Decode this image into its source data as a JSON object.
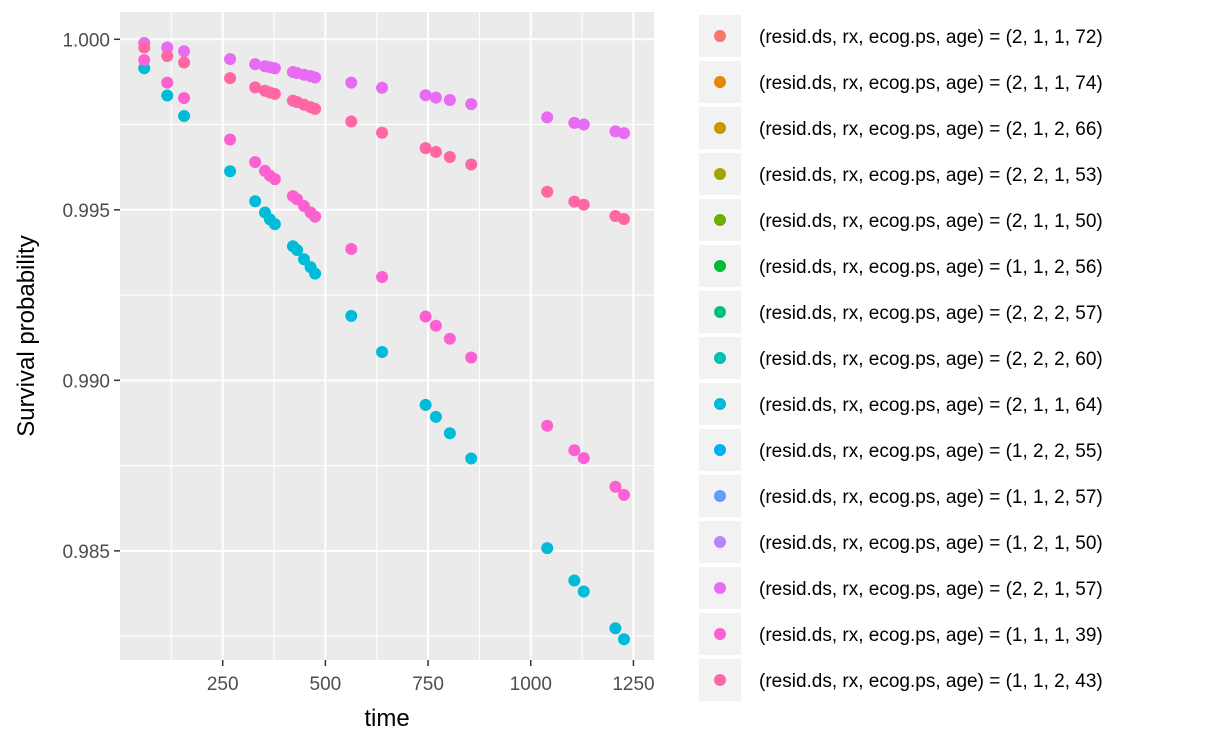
{
  "chart_data": {
    "type": "scatter",
    "title": "",
    "xlabel": "time",
    "ylabel": "Survival probability",
    "xlim": [
      0,
      1300
    ],
    "ylim": [
      0.9818,
      1.0008
    ],
    "x_ticks": [
      250,
      500,
      750,
      1000,
      1250
    ],
    "y_ticks": [
      0.985,
      0.99,
      0.995,
      1.0
    ],
    "x_tick_labels": [
      "250",
      "500",
      "750",
      "1000",
      "1250"
    ],
    "y_tick_labels": [
      "0.985",
      "0.990",
      "0.995",
      "1.000"
    ],
    "grid": true,
    "legend_position": "right",
    "times": [
      59,
      115,
      156,
      268,
      329,
      353,
      365,
      377,
      421,
      431,
      448,
      464,
      475,
      563,
      638,
      744,
      769,
      803,
      855,
      1040,
      1106,
      1129,
      1206,
      1227
    ],
    "series": [
      {
        "name": "(resid.ds, rx, ecog.ps, age) = (2, 1, 1, 72)",
        "color": "#F8766D",
        "values": []
      },
      {
        "name": "(resid.ds, rx, ecog.ps, age) = (2, 1, 1, 74)",
        "color": "#E58700",
        "values": []
      },
      {
        "name": "(resid.ds, rx, ecog.ps, age) = (2, 1, 2, 66)",
        "color": "#C99800",
        "values": []
      },
      {
        "name": "(resid.ds, rx, ecog.ps, age) = (2, 2, 1, 53)",
        "color": "#A3A500",
        "values": []
      },
      {
        "name": "(resid.ds, rx, ecog.ps, age) = (2, 1, 1, 50)",
        "color": "#6BB100",
        "values": []
      },
      {
        "name": "(resid.ds, rx, ecog.ps, age) = (1, 1, 2, 56)",
        "color": "#00BA38",
        "values": []
      },
      {
        "name": "(resid.ds, rx, ecog.ps, age) = (2, 2, 2, 57)",
        "color": "#00BF7D",
        "values": []
      },
      {
        "name": "(resid.ds, rx, ecog.ps, age) = (2, 2, 2, 60)",
        "color": "#00C0AF",
        "values": []
      },
      {
        "name": "(resid.ds, rx, ecog.ps, age) = (2, 1, 1, 64)",
        "color": "#00BCD8",
        "values": [
          0.99915,
          0.99835,
          0.99775,
          0.99613,
          0.99525,
          0.99492,
          0.99472,
          0.99458,
          0.99393,
          0.99382,
          0.99355,
          0.99332,
          0.99313,
          0.99189,
          0.99083,
          0.98928,
          0.98893,
          0.98845,
          0.98771,
          0.98508,
          0.98413,
          0.98381,
          0.98273,
          0.98241
        ]
      },
      {
        "name": "(resid.ds, rx, ecog.ps, age) = (1, 2, 2, 55)",
        "color": "#00B0F6",
        "values": []
      },
      {
        "name": "(resid.ds, rx, ecog.ps, age) = (1, 1, 2, 57)",
        "color": "#619CFF",
        "values": []
      },
      {
        "name": "(resid.ds, rx, ecog.ps, age) = (1, 2, 1, 50)",
        "color": "#B983FF",
        "values": []
      },
      {
        "name": "(resid.ds, rx, ecog.ps, age) = (2, 2, 1, 57)",
        "color": "#E76BF3",
        "values": [
          0.99989,
          0.99976,
          0.99965,
          0.99942,
          0.99927,
          0.99921,
          0.99918,
          0.99915,
          0.99904,
          0.99901,
          0.99896,
          0.99892,
          0.99888,
          0.99873,
          0.99858,
          0.99836,
          0.99829,
          0.99822,
          0.9981,
          0.99771,
          0.99755,
          0.9975,
          0.9973,
          0.99725
        ]
      },
      {
        "name": "(resid.ds, rx, ecog.ps, age) = (1, 1, 1, 39)",
        "color": "#FD61D1",
        "values": [
          0.99939,
          0.99873,
          0.99828,
          0.99706,
          0.9964,
          0.99614,
          0.996,
          0.9959,
          0.9954,
          0.99531,
          0.99511,
          0.99492,
          0.9948,
          0.99385,
          0.99303,
          0.99187,
          0.9916,
          0.99122,
          0.99067,
          0.98867,
          0.98795,
          0.98772,
          0.98688,
          0.98664
        ]
      },
      {
        "name": "(resid.ds, rx, ecog.ps, age) = (1, 1, 2, 43)",
        "color": "#FF67A4",
        "values": [
          0.99976,
          0.99951,
          0.99932,
          0.99886,
          0.99859,
          0.99849,
          0.99844,
          0.9984,
          0.9982,
          0.99816,
          0.99808,
          0.99801,
          0.99796,
          0.99759,
          0.99726,
          0.99681,
          0.9967,
          0.99655,
          0.99633,
          0.99553,
          0.99524,
          0.99515,
          0.99482,
          0.99473
        ]
      }
    ]
  }
}
